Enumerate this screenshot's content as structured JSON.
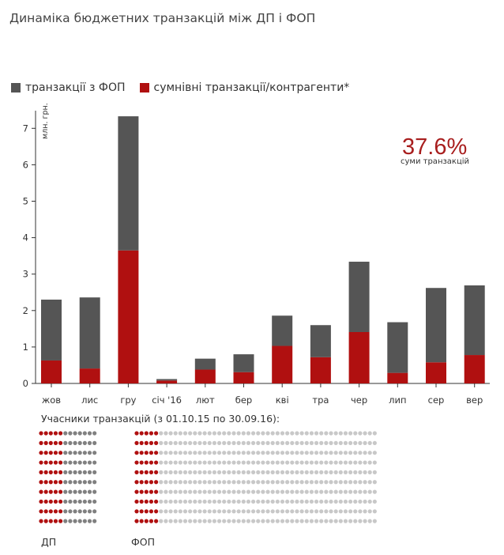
{
  "title": "Динаміка бюджетних транзакцій між ДП і ФОП",
  "legend": [
    {
      "label": "транзакції з ФОП",
      "color": "#555555"
    },
    {
      "label": "сумнівні транзакції/контрагенти*",
      "color": "#b01010"
    }
  ],
  "callout": {
    "value": "37.6%",
    "label": "суми транзакцій"
  },
  "chart_data": {
    "type": "bar",
    "stacked": true,
    "ylabel": "млн. грн.",
    "ylim": [
      0,
      7.3
    ],
    "yticks": [
      0,
      1,
      2,
      3,
      4,
      5,
      6,
      7
    ],
    "categories": [
      "жов",
      "лис",
      "гру",
      "січ '16",
      "лют",
      "бер",
      "кві",
      "тра",
      "чер",
      "лип",
      "сер",
      "вер"
    ],
    "series": [
      {
        "name": "сумнівні транзакції/контрагенти*",
        "color": "#b01010",
        "values": [
          0.63,
          0.41,
          3.65,
          0.08,
          0.38,
          0.31,
          1.03,
          0.72,
          1.41,
          0.29,
          0.58,
          0.78
        ]
      },
      {
        "name": "транзакції з ФОП",
        "color": "#555555",
        "values": [
          1.67,
          1.95,
          3.68,
          0.04,
          0.3,
          0.49,
          0.83,
          0.88,
          1.93,
          1.39,
          2.04,
          1.91
        ]
      }
    ],
    "grid": false
  },
  "participants": {
    "title": "Учасники транзакцій (з 01.10.15 по 30.09.16):",
    "groups": [
      {
        "label": "ДП",
        "rows": 10,
        "cols": 12,
        "red_per_row": 5
      },
      {
        "label": "ФОП",
        "rows": 10,
        "cols": 50,
        "red_per_row": 5
      }
    ],
    "red_color": "#b01010",
    "dark_color": "#808080",
    "light_color": "#c8c8c8"
  }
}
